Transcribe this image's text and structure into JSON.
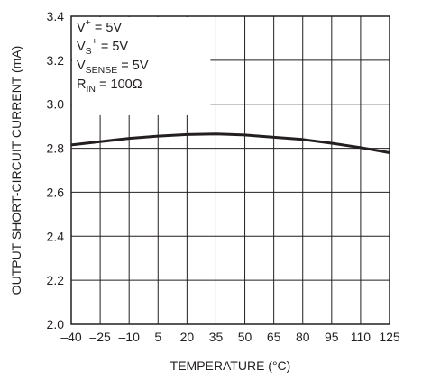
{
  "chart_data": {
    "type": "line",
    "title": "",
    "xlabel": "TEMPERATURE (°C)",
    "ylabel": "OUTPUT SHORT-CIRCUIT CURRENT (mA)",
    "xlim": [
      -40,
      125
    ],
    "ylim": [
      2.0,
      3.4
    ],
    "x_ticks": [
      -40,
      -25,
      -10,
      5,
      20,
      35,
      50,
      65,
      80,
      95,
      110,
      125
    ],
    "x_tick_labels": [
      "–40",
      "–25",
      "–10",
      "5",
      "20",
      "35",
      "50",
      "65",
      "80",
      "95",
      "110",
      "125"
    ],
    "y_ticks": [
      2.0,
      2.2,
      2.4,
      2.6,
      2.8,
      3.0,
      3.2,
      3.4
    ],
    "y_tick_labels": [
      "2.0",
      "2.2",
      "2.4",
      "2.6",
      "2.8",
      "3.0",
      "3.2",
      "3.4"
    ],
    "grid": true,
    "legend_placement": "top-left",
    "conditions": [
      {
        "main": "V",
        "sub": "",
        "sup": "+",
        "rest": " = 5V"
      },
      {
        "main": "V",
        "sub": "S",
        "sup": "+",
        "rest": " = 5V"
      },
      {
        "main": "V",
        "sub": "SENSE",
        "sup": "",
        "rest": " = 5V"
      },
      {
        "main": "R",
        "sub": "IN",
        "sup": "",
        "rest": " = 100Ω"
      }
    ],
    "series": [
      {
        "x": [
          -40,
          -25,
          -10,
          5,
          20,
          35,
          50,
          65,
          80,
          95,
          110,
          125
        ],
        "y": [
          2.815,
          2.83,
          2.845,
          2.855,
          2.862,
          2.865,
          2.86,
          2.85,
          2.84,
          2.823,
          2.803,
          2.78
        ]
      }
    ],
    "colors": {
      "line": "#231f20",
      "grid": "#231f20",
      "background": "#ffffff"
    }
  }
}
